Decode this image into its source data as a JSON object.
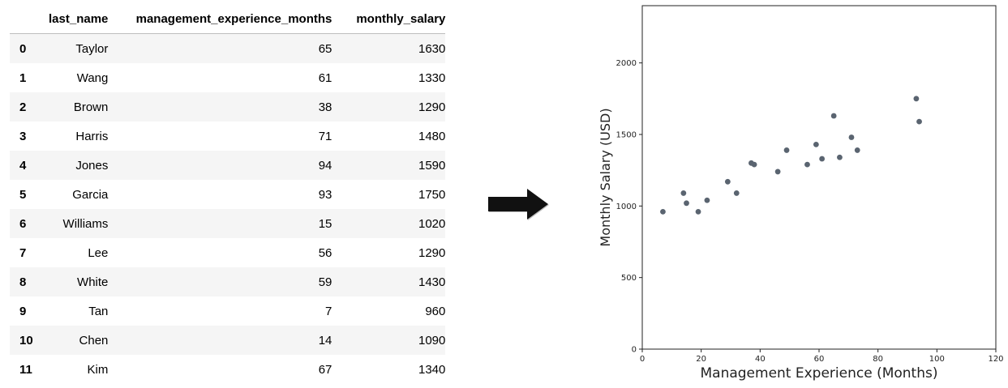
{
  "table": {
    "columns": [
      "last_name",
      "management_experience_months",
      "monthly_salary"
    ],
    "rows": [
      {
        "index": "0",
        "last_name": "Taylor",
        "management_experience_months": "65",
        "monthly_salary": "1630"
      },
      {
        "index": "1",
        "last_name": "Wang",
        "management_experience_months": "61",
        "monthly_salary": "1330"
      },
      {
        "index": "2",
        "last_name": "Brown",
        "management_experience_months": "38",
        "monthly_salary": "1290"
      },
      {
        "index": "3",
        "last_name": "Harris",
        "management_experience_months": "71",
        "monthly_salary": "1480"
      },
      {
        "index": "4",
        "last_name": "Jones",
        "management_experience_months": "94",
        "monthly_salary": "1590"
      },
      {
        "index": "5",
        "last_name": "Garcia",
        "management_experience_months": "93",
        "monthly_salary": "1750"
      },
      {
        "index": "6",
        "last_name": "Williams",
        "management_experience_months": "15",
        "monthly_salary": "1020"
      },
      {
        "index": "7",
        "last_name": "Lee",
        "management_experience_months": "56",
        "monthly_salary": "1290"
      },
      {
        "index": "8",
        "last_name": "White",
        "management_experience_months": "59",
        "monthly_salary": "1430"
      },
      {
        "index": "9",
        "last_name": "Tan",
        "management_experience_months": "7",
        "monthly_salary": "960"
      },
      {
        "index": "10",
        "last_name": "Chen",
        "management_experience_months": "14",
        "monthly_salary": "1090"
      },
      {
        "index": "11",
        "last_name": "Kim",
        "management_experience_months": "67",
        "monthly_salary": "1340"
      }
    ]
  },
  "arrow_icon": "right-arrow-icon",
  "chart_data": {
    "type": "scatter",
    "title": "",
    "xlabel": "Management Experience (Months)",
    "ylabel": "Monthly Salary (USD)",
    "xlim": [
      0,
      120
    ],
    "ylim": [
      0,
      2400
    ],
    "xticks": [
      "0",
      "20",
      "40",
      "60",
      "80",
      "100",
      "120"
    ],
    "yticks": [
      "0",
      "500",
      "1000",
      "1500",
      "2000"
    ],
    "grid": false,
    "legend": "none",
    "marker_color": "#5a6470",
    "x": [
      7,
      14,
      15,
      19,
      22,
      29,
      32,
      37,
      38,
      46,
      49,
      56,
      59,
      61,
      65,
      67,
      71,
      73,
      93,
      94
    ],
    "y": [
      960,
      1090,
      1020,
      960,
      1040,
      1170,
      1090,
      1300,
      1290,
      1240,
      1390,
      1290,
      1430,
      1330,
      1630,
      1340,
      1480,
      1390,
      1750,
      1590
    ]
  }
}
